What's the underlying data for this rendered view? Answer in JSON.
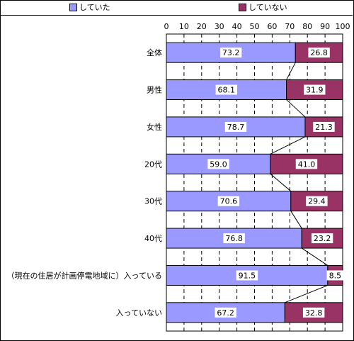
{
  "legend": {
    "items": [
      {
        "label": "していた",
        "color": "#9999ff"
      },
      {
        "label": "していない",
        "color": "#993366"
      }
    ]
  },
  "chart_data": {
    "type": "bar",
    "orientation": "horizontal",
    "stacked": true,
    "xlim": [
      0,
      100
    ],
    "x_ticks": [
      0,
      10,
      20,
      30,
      40,
      50,
      60,
      70,
      80,
      90,
      100
    ],
    "grid": true,
    "legend_position": "top",
    "categories": [
      "全体",
      "男性",
      "女性",
      "20代",
      "30代",
      "40代",
      "（現在の住居が計画停電地域に）入っている",
      "入っていない"
    ],
    "series": [
      {
        "name": "していた",
        "color": "#9999ff",
        "values": [
          73.2,
          68.1,
          78.7,
          59.0,
          70.6,
          76.8,
          91.5,
          67.2
        ]
      },
      {
        "name": "していない",
        "color": "#993366",
        "values": [
          26.8,
          31.9,
          21.3,
          41.0,
          29.4,
          23.2,
          8.5,
          32.8
        ]
      }
    ]
  }
}
